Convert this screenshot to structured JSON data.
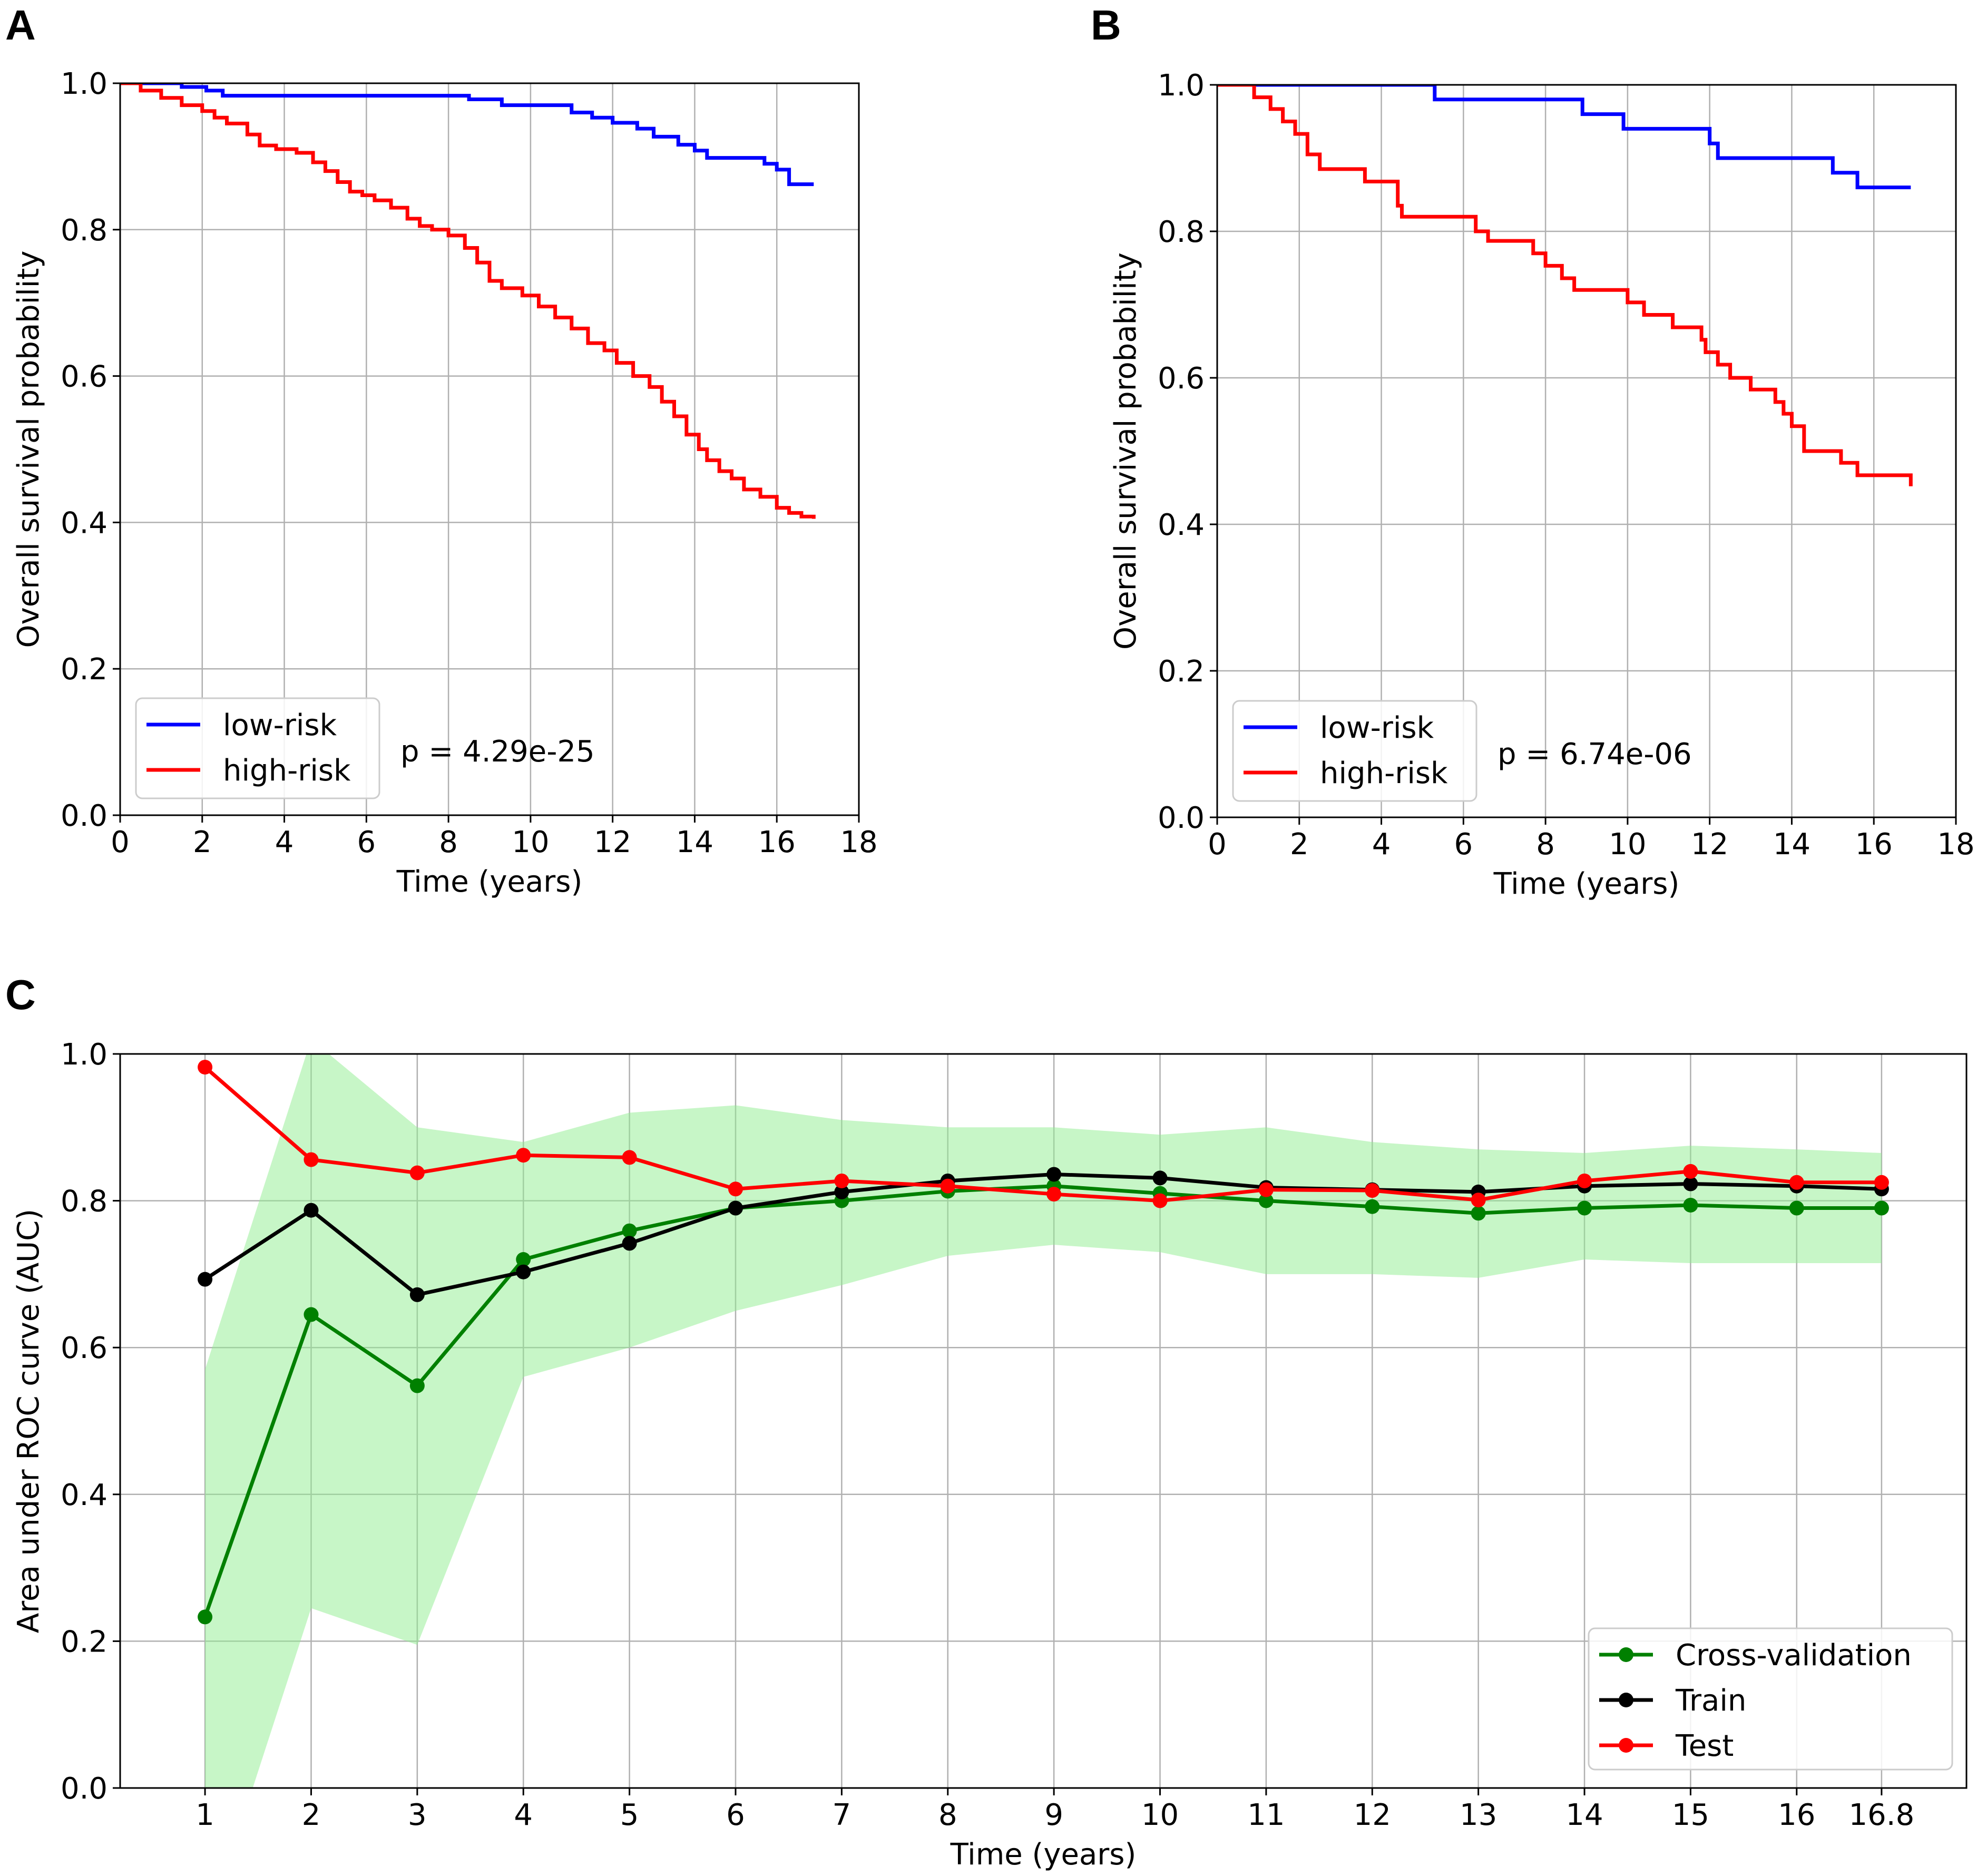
{
  "chart_data": [
    {
      "panel": "A",
      "type": "line",
      "title": "",
      "xlabel": "Time (years)",
      "ylabel": "Overall survival probability",
      "xlim": [
        0,
        18
      ],
      "ylim": [
        0,
        1.0
      ],
      "xticks": [
        "0",
        "2",
        "4",
        "6",
        "8",
        "10",
        "12",
        "14",
        "16",
        "18"
      ],
      "yticks": [
        "0.0",
        "0.2",
        "0.4",
        "0.6",
        "0.8",
        "1.0"
      ],
      "grid": true,
      "legend_position": "lower-left",
      "annotation": "p = 4.29e-25",
      "series": [
        {
          "name": "low-risk",
          "color": "#0000ff",
          "step": true,
          "x": [
            0,
            1.5,
            2.1,
            2.5,
            8.5,
            9.3,
            11.0,
            11.5,
            12.0,
            12.6,
            13.0,
            13.6,
            14.0,
            14.3,
            15.7,
            16.0,
            16.3,
            16.9
          ],
          "y": [
            1.0,
            0.995,
            0.99,
            0.983,
            0.978,
            0.97,
            0.96,
            0.953,
            0.946,
            0.938,
            0.927,
            0.916,
            0.908,
            0.898,
            0.89,
            0.882,
            0.862,
            0.862
          ]
        },
        {
          "name": "high-risk",
          "color": "#ff0000",
          "step": true,
          "x": [
            0,
            0.5,
            1.0,
            1.5,
            2.0,
            2.3,
            2.6,
            3.1,
            3.4,
            3.8,
            4.3,
            4.7,
            5.0,
            5.3,
            5.6,
            5.9,
            6.2,
            6.6,
            7.0,
            7.3,
            7.6,
            8.0,
            8.4,
            8.7,
            9.0,
            9.3,
            9.8,
            10.2,
            10.6,
            11.0,
            11.4,
            11.8,
            12.1,
            12.5,
            12.9,
            13.2,
            13.5,
            13.8,
            14.1,
            14.3,
            14.6,
            14.9,
            15.2,
            15.6,
            16.0,
            16.3,
            16.6,
            16.9
          ],
          "y": [
            1.0,
            0.99,
            0.98,
            0.97,
            0.962,
            0.953,
            0.945,
            0.93,
            0.915,
            0.91,
            0.905,
            0.892,
            0.88,
            0.865,
            0.852,
            0.847,
            0.84,
            0.83,
            0.815,
            0.805,
            0.8,
            0.792,
            0.775,
            0.755,
            0.73,
            0.72,
            0.71,
            0.695,
            0.68,
            0.665,
            0.645,
            0.635,
            0.618,
            0.6,
            0.585,
            0.565,
            0.545,
            0.52,
            0.5,
            0.485,
            0.47,
            0.46,
            0.445,
            0.435,
            0.42,
            0.413,
            0.408,
            0.405
          ]
        }
      ]
    },
    {
      "panel": "B",
      "type": "line",
      "title": "",
      "xlabel": "Time (years)",
      "ylabel": "Overall survival probability",
      "xlim": [
        0,
        18
      ],
      "ylim": [
        0,
        1.0
      ],
      "xticks": [
        "0",
        "2",
        "4",
        "6",
        "8",
        "10",
        "12",
        "14",
        "16",
        "18"
      ],
      "yticks": [
        "0.0",
        "0.2",
        "0.4",
        "0.6",
        "0.8",
        "1.0"
      ],
      "grid": true,
      "legend_position": "lower-left",
      "annotation": "p = 6.74e-06",
      "series": [
        {
          "name": "low-risk",
          "color": "#0000ff",
          "step": true,
          "x": [
            0,
            5.3,
            8.9,
            9.9,
            12.0,
            12.2,
            15.0,
            15.6,
            16.9
          ],
          "y": [
            1.0,
            0.98,
            0.96,
            0.94,
            0.92,
            0.9,
            0.88,
            0.86,
            0.86
          ]
        },
        {
          "name": "high-risk",
          "color": "#ff0000",
          "step": true,
          "x": [
            0,
            0.9,
            1.3,
            1.6,
            1.9,
            2.2,
            2.5,
            3.6,
            4.4,
            4.5,
            6.3,
            6.6,
            7.7,
            8.0,
            8.4,
            8.7,
            10.0,
            10.4,
            11.1,
            11.8,
            11.9,
            12.2,
            12.5,
            13.0,
            13.6,
            13.8,
            14.0,
            14.3,
            15.2,
            15.6,
            16.9
          ],
          "y": [
            1.0,
            0.983,
            0.967,
            0.95,
            0.933,
            0.905,
            0.885,
            0.868,
            0.835,
            0.82,
            0.8,
            0.787,
            0.77,
            0.753,
            0.736,
            0.72,
            0.703,
            0.686,
            0.669,
            0.652,
            0.635,
            0.618,
            0.6,
            0.584,
            0.567,
            0.551,
            0.534,
            0.5,
            0.484,
            0.467,
            0.452
          ]
        }
      ]
    },
    {
      "panel": "C",
      "type": "line",
      "title": "",
      "xlabel": "Time (years)",
      "ylabel": "Area under ROC curve (AUC)",
      "xlim": [
        0.2,
        17.6
      ],
      "ylim": [
        0,
        1.0
      ],
      "x": [
        1,
        2,
        3,
        4,
        5,
        6,
        7,
        8,
        9,
        10,
        11,
        12,
        13,
        14,
        15,
        16,
        16.8
      ],
      "xticks": [
        "1",
        "2",
        "3",
        "4",
        "5",
        "6",
        "7",
        "8",
        "9",
        "10",
        "11",
        "12",
        "13",
        "14",
        "15",
        "16",
        "16.8"
      ],
      "yticks": [
        "0.0",
        "0.2",
        "0.4",
        "0.6",
        "0.8",
        "1.0"
      ],
      "grid": true,
      "legend_position": "lower-right",
      "band": {
        "series": "Cross-validation",
        "color": "#90ee90",
        "upper": [
          0.57,
          1.02,
          0.9,
          0.88,
          0.92,
          0.93,
          0.91,
          0.9,
          0.9,
          0.89,
          0.9,
          0.88,
          0.87,
          0.865,
          0.875,
          0.87,
          0.865
        ],
        "lower": [
          -0.2,
          0.245,
          0.195,
          0.56,
          0.6,
          0.65,
          0.685,
          0.725,
          0.74,
          0.73,
          0.7,
          0.7,
          0.695,
          0.72,
          0.715,
          0.715,
          0.715
        ]
      },
      "series": [
        {
          "name": "Cross-validation",
          "color": "#008000",
          "values": [
            0.233,
            0.645,
            0.548,
            0.72,
            0.759,
            0.79,
            0.8,
            0.813,
            0.82,
            0.81,
            0.8,
            0.792,
            0.783,
            0.79,
            0.794,
            0.79,
            0.79
          ]
        },
        {
          "name": "Train",
          "color": "#000000",
          "values": [
            0.693,
            0.787,
            0.672,
            0.703,
            0.742,
            0.79,
            0.812,
            0.827,
            0.836,
            0.831,
            0.818,
            0.815,
            0.812,
            0.82,
            0.823,
            0.82,
            0.816
          ]
        },
        {
          "name": "Test",
          "color": "#ff0000",
          "values": [
            0.982,
            0.856,
            0.838,
            0.862,
            0.859,
            0.816,
            0.827,
            0.82,
            0.809,
            0.8,
            0.815,
            0.814,
            0.801,
            0.827,
            0.84,
            0.825,
            0.825
          ]
        }
      ]
    }
  ]
}
